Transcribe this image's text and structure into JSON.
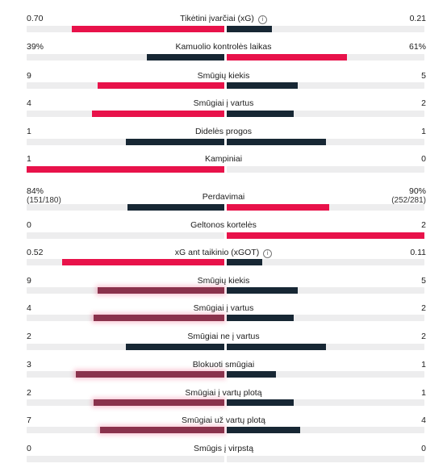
{
  "colors": {
    "home_primary": "#e8124a",
    "away": "#172734",
    "home_secondary": "#8a324c",
    "bar_bg": "#ededee"
  },
  "icons": {
    "info": "info-icon"
  },
  "info_glyph": "i",
  "stats": [
    {
      "label": "Tikėtini įvarčiai (xG)",
      "home": "0.70",
      "away": "0.21",
      "home_share": 0.77,
      "away_share": 0.23,
      "home_color": "red",
      "away_color": "dark",
      "info": true
    },
    {
      "label": "Kamuolio kontrolės laikas",
      "home": "39%",
      "away": "61%",
      "home_share": 0.39,
      "away_share": 0.61,
      "home_color": "dark",
      "away_color": "red"
    },
    {
      "label": "Smūgių kiekis",
      "home": "9",
      "away": "5",
      "home_share": 0.64,
      "away_share": 0.36,
      "home_color": "red",
      "away_color": "dark"
    },
    {
      "label": "Smūgiai į vartus",
      "home": "4",
      "away": "2",
      "home_share": 0.67,
      "away_share": 0.34,
      "home_color": "red",
      "away_color": "dark"
    },
    {
      "label": "Didelės progos",
      "home": "1",
      "away": "1",
      "home_share": 0.5,
      "away_share": 0.5,
      "home_color": "dark",
      "away_color": "dark"
    },
    {
      "label": "Kampiniai",
      "home": "1",
      "away": "0",
      "home_share": 1.0,
      "away_share": 0.0,
      "home_color": "red",
      "away_color": "dark"
    },
    {
      "label": "Perdavimai",
      "home": "84%",
      "away": "90%",
      "home_sub": "(151/180)",
      "away_sub": "(252/281)",
      "home_share": 0.49,
      "away_share": 0.52,
      "home_color": "dark",
      "away_color": "red"
    },
    {
      "label": "Geltonos kortelės",
      "home": "0",
      "away": "2",
      "home_share": 0.0,
      "away_share": 1.0,
      "home_color": "dark",
      "away_color": "red"
    },
    {
      "label": "xG ant taikinio (xGOT)",
      "home": "0.52",
      "away": "0.11",
      "home_share": 0.82,
      "away_share": 0.18,
      "home_color": "red",
      "away_color": "dark",
      "info": true
    },
    {
      "label": "Smūgių kiekis",
      "home": "9",
      "away": "5",
      "home_share": 0.64,
      "away_share": 0.36,
      "home_color": "muted",
      "away_color": "dark"
    },
    {
      "label": "Smūgiai į vartus",
      "home": "4",
      "away": "2",
      "home_share": 0.66,
      "away_share": 0.34,
      "home_color": "muted",
      "away_color": "dark"
    },
    {
      "label": "Smūgiai ne į vartus",
      "home": "2",
      "away": "2",
      "home_share": 0.5,
      "away_share": 0.5,
      "home_color": "dark",
      "away_color": "dark"
    },
    {
      "label": "Blokuoti smūgiai",
      "home": "3",
      "away": "1",
      "home_share": 0.75,
      "away_share": 0.25,
      "home_color": "muted",
      "away_color": "dark"
    },
    {
      "label": "Smūgiai į vartų plotą",
      "home": "2",
      "away": "1",
      "home_share": 0.66,
      "away_share": 0.34,
      "home_color": "muted",
      "away_color": "dark"
    },
    {
      "label": "Smūgiai už vartų plotą",
      "home": "7",
      "away": "4",
      "home_share": 0.63,
      "away_share": 0.37,
      "home_color": "muted",
      "away_color": "dark"
    },
    {
      "label": "Smūgis į virpstą",
      "home": "0",
      "away": "0",
      "home_share": 0.0,
      "away_share": 0.0,
      "home_color": "dark",
      "away_color": "dark"
    }
  ]
}
